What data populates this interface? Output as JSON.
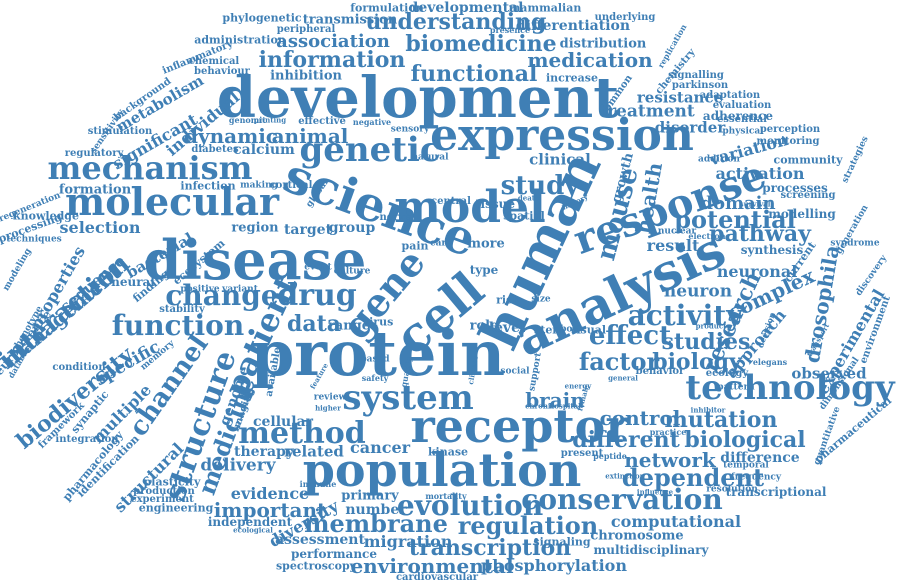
{
  "cloud": {
    "color": "#3f7fb5",
    "words": [
      "formulation",
      "developmental",
      "mammalian",
      "phylogenetic",
      "transmission",
      "understanding",
      "differentiation",
      "underlying",
      "peripheral",
      "presence",
      "replication",
      "chemistry",
      "administration",
      "association",
      "biomedicine",
      "distribution",
      "inflammatory",
      "information",
      "medication",
      "chemical",
      "development",
      "signalling",
      "parkinson",
      "behaviour",
      "inhibition",
      "functional",
      "increase",
      "common",
      "adaptation",
      "expression",
      "background",
      "metabolism",
      "individual",
      "resistance",
      "evaluation",
      "treatment",
      "essential",
      "sensitivity",
      "genomic",
      "printing",
      "effective",
      "negative",
      "stimulation",
      "significant",
      "dynamic",
      "animal",
      "sensory",
      "disorder",
      "adherence",
      "physical",
      "perception",
      "regulatory",
      "diabetes",
      "calcium",
      "genetic",
      "natural",
      "monitoring",
      "mechanism",
      "science",
      "clinical",
      "variation",
      "community",
      "addition",
      "strategies",
      "molecular",
      "activation",
      "infection",
      "making",
      "cortical",
      "study",
      "global",
      "growth",
      "formation",
      "processes",
      "screening",
      "regeneration",
      "knowledge",
      "model",
      "human",
      "response",
      "domain",
      "generation",
      "potential",
      "modelling",
      "processing",
      "selection",
      "survival",
      "region",
      "target",
      "group",
      "nerve",
      "central",
      "tissue",
      "death",
      "mouse",
      "health",
      "spatial",
      "history",
      "pathway",
      "disease",
      "techniques",
      "syndrome",
      "modeling",
      "bacterial",
      "pain",
      "care",
      "analysis",
      "nuclear",
      "electron",
      "properties",
      "ecosystem",
      "more",
      "cell",
      "result",
      "synthesis",
      "current",
      "gene",
      "sequence",
      "finding",
      "drug",
      "change",
      "event",
      "culture",
      "type",
      "neuronal",
      "drosophila",
      "discovery",
      "complex",
      "neural",
      "activity",
      "neuron",
      "management",
      "positive",
      "variant",
      "interaction",
      "patient",
      "stability",
      "data",
      "range",
      "virus",
      "risk",
      "size",
      "role",
      "level",
      "stem",
      "body",
      "visual",
      "research",
      "experimental",
      "approach",
      "function",
      "environment",
      "neuroscience",
      "product",
      "decision",
      "transport",
      "phenotype",
      "protein",
      "effect",
      "factor",
      "studies",
      "condition",
      "memory",
      "biology",
      "observed",
      "database",
      "specific",
      "channel",
      "behavior",
      "ecology",
      "available",
      "based",
      "feature",
      "quality",
      "climate",
      "support",
      "social",
      "dimensional",
      "technology",
      "biodiversity",
      "safety",
      "genome",
      "general",
      "pattern",
      "elegans",
      "energy",
      "review",
      "chronic",
      "hospital",
      "female",
      "inhibitor",
      "higher",
      "brain",
      "synaptic",
      "multiple",
      "system",
      "control",
      "mutation",
      "pharmaceutical",
      "framework",
      "imaging",
      "structure",
      "practice",
      "receptor",
      "quantitative",
      "medicine",
      "different",
      "biological",
      "integration",
      "method",
      "temporal",
      "therapy",
      "related",
      "cancer",
      "kinase",
      "cellular",
      "network",
      "difference",
      "frequency",
      "pharmacology",
      "identification",
      "population",
      "present",
      "peptide",
      "delivery",
      "extinction",
      "dependent",
      "structural",
      "plasticity",
      "evidence",
      "mortality",
      "immune",
      "influence",
      "transcriptional",
      "resolution",
      "production",
      "experiment",
      "primary",
      "evolution",
      "conservation",
      "ecological",
      "engineering",
      "important",
      "number",
      "independent",
      "membrane",
      "regulation",
      "computational",
      "diversity",
      "chromosome",
      "assessment",
      "migration",
      "signaling",
      "transcription",
      "performance",
      "multidisciplinary",
      "environmental",
      "spectroscopy",
      "phosphorylation",
      "cardiovascular"
    ]
  }
}
